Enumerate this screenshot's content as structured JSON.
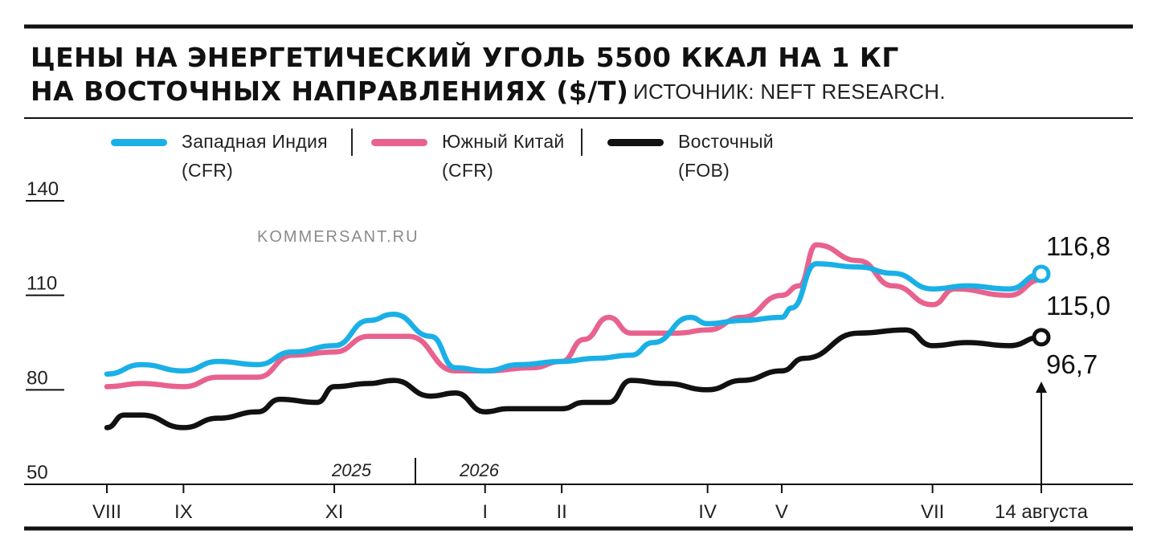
{
  "header": {
    "title_line1": "ЦЕНЫ НА ЭНЕРГЕТИЧЕСКИЙ УГОЛЬ 5500 ККАЛ НА 1 КГ",
    "title_line2": "НА ВОСТОЧНЫХ НАПРАВЛЕНИЯХ ($/Т)",
    "source": "ИСТОЧНИК: NEFT RESEARCH."
  },
  "watermark": "KOMMERSANT.RU",
  "legend": [
    {
      "name": "Западная Индия",
      "sub": "(CFR)",
      "color": "#1ab0e6"
    },
    {
      "name": "Южный Китай",
      "sub": "(CFR)",
      "color": "#e8628e"
    },
    {
      "name": "Восточный",
      "sub": "(FOB)",
      "color": "#111111"
    }
  ],
  "chart_data": {
    "type": "line",
    "title": "ЦЕНЫ НА ЭНЕРГЕТИЧЕСКИЙ УГОЛЬ 5500 ККАЛ НА 1 КГ НА ВОСТОЧНЫХ НАПРАВЛЕНИЯХ ($/Т)",
    "ylabel": "",
    "xlabel": "",
    "ylim": [
      50,
      140
    ],
    "yticks": [
      50,
      80,
      110,
      140
    ],
    "x_tick_labels": [
      "VIII",
      "IX",
      "XI",
      "I",
      "II",
      "IV",
      "V",
      "VII",
      "14 августа"
    ],
    "year_labels": [
      "2025",
      "2026"
    ],
    "grid": false,
    "series": [
      {
        "name": "Западная Индия (CFR)",
        "color": "#1ab0e6",
        "x": [
          "2024-08-01",
          "2024-08-15",
          "2024-09-01",
          "2024-09-15",
          "2024-10-01",
          "2024-10-15",
          "2024-11-01",
          "2024-11-15",
          "2024-11-25",
          "2024-12-10",
          "2024-12-20",
          "2025-01-01",
          "2025-01-15",
          "2025-02-01",
          "2025-02-15",
          "2025-03-01",
          "2025-03-10",
          "2025-03-25",
          "2025-04-01",
          "2025-04-15",
          "2025-05-01",
          "2025-05-05",
          "2025-05-15",
          "2025-06-01",
          "2025-06-15",
          "2025-07-01",
          "2025-07-15",
          "2025-08-01",
          "2025-08-14"
        ],
        "values": [
          85,
          88,
          86,
          89,
          88,
          92,
          94,
          102,
          104,
          97,
          87,
          86,
          88,
          89,
          90,
          91,
          95,
          103,
          101,
          102,
          103,
          106,
          120,
          119,
          117,
          112,
          113,
          112,
          116.8
        ]
      },
      {
        "name": "Южный Китай (CFR)",
        "color": "#e8628e",
        "x": [
          "2024-08-01",
          "2024-08-15",
          "2024-09-01",
          "2024-09-15",
          "2024-10-01",
          "2024-10-15",
          "2024-11-01",
          "2024-11-15",
          "2024-12-01",
          "2024-12-20",
          "2025-01-01",
          "2025-01-20",
          "2025-02-01",
          "2025-02-10",
          "2025-02-20",
          "2025-03-01",
          "2025-03-20",
          "2025-04-01",
          "2025-04-15",
          "2025-05-01",
          "2025-05-08",
          "2025-05-15",
          "2025-06-01",
          "2025-06-15",
          "2025-07-01",
          "2025-07-10",
          "2025-08-01",
          "2025-08-14"
        ],
        "values": [
          81,
          82,
          81,
          84,
          84,
          91,
          92,
          97,
          97,
          86,
          86,
          87,
          89,
          96,
          103,
          98,
          98,
          99,
          103,
          110,
          113,
          126,
          121,
          113,
          107,
          112,
          110,
          115.0
        ]
      },
      {
        "name": "Восточный (FOB)",
        "color": "#111111",
        "x": [
          "2024-08-01",
          "2024-08-08",
          "2024-08-15",
          "2024-09-01",
          "2024-09-15",
          "2024-10-01",
          "2024-10-10",
          "2024-10-25",
          "2024-11-01",
          "2024-11-15",
          "2024-11-25",
          "2024-12-10",
          "2024-12-20",
          "2025-01-01",
          "2025-01-10",
          "2025-01-20",
          "2025-02-01",
          "2025-02-10",
          "2025-02-20",
          "2025-03-01",
          "2025-03-15",
          "2025-04-01",
          "2025-04-15",
          "2025-05-01",
          "2025-05-10",
          "2025-06-01",
          "2025-06-20",
          "2025-07-01",
          "2025-07-15",
          "2025-08-01",
          "2025-08-14"
        ],
        "values": [
          68,
          72,
          72,
          68,
          71,
          73,
          77,
          76,
          81,
          82,
          83,
          78,
          79,
          73,
          74,
          74,
          74,
          76,
          76,
          83,
          82,
          80,
          83,
          86,
          90,
          98,
          99,
          94,
          95,
          94,
          96.7
        ]
      }
    ],
    "end_labels": [
      "116,8",
      "115,0",
      "96,7"
    ]
  }
}
